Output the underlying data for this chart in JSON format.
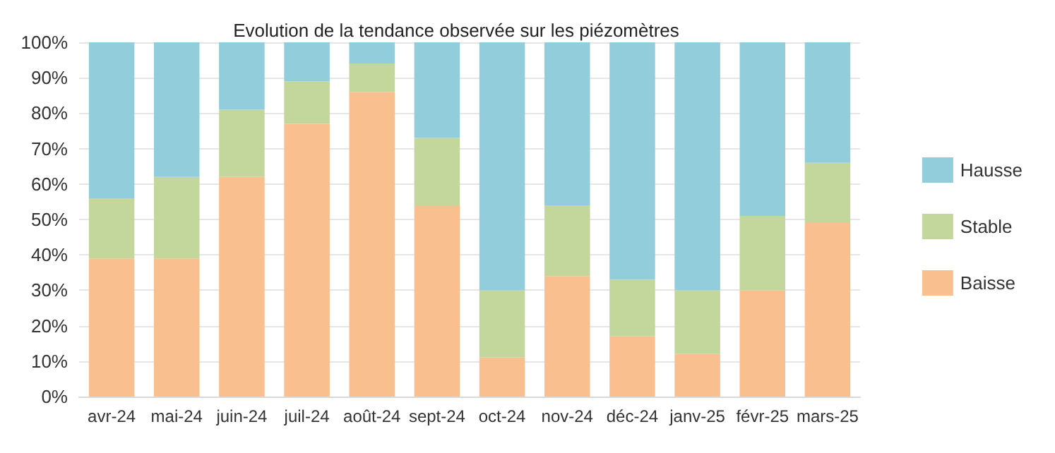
{
  "chart_data": {
    "type": "bar",
    "title": "Evolution de la tendance observée sur les piézomètres",
    "stacked": true,
    "categories": [
      "avr-24",
      "mai-24",
      "juin-24",
      "juil-24",
      "août-24",
      "sept-24",
      "oct-24",
      "nov-24",
      "déc-24",
      "janv-25",
      "févr-25",
      "mars-25"
    ],
    "series": [
      {
        "name": "Baisse",
        "color": "#f9bf8f",
        "values": [
          39,
          39,
          62,
          77,
          86,
          54,
          11,
          34,
          17,
          12,
          30,
          49
        ]
      },
      {
        "name": "Stable",
        "color": "#c3d69b",
        "values": [
          17,
          23,
          19,
          12,
          8,
          19,
          19,
          20,
          16,
          18,
          21,
          17
        ]
      },
      {
        "name": "Hausse",
        "color": "#92cddc",
        "values": [
          44,
          38,
          19,
          11,
          6,
          27,
          70,
          46,
          67,
          70,
          49,
          34
        ]
      }
    ],
    "ylim": [
      0,
      100
    ],
    "yticks": [
      {
        "value": 0,
        "label": "0%"
      },
      {
        "value": 10,
        "label": "10%"
      },
      {
        "value": 20,
        "label": "20%"
      },
      {
        "value": 30,
        "label": "30%"
      },
      {
        "value": 40,
        "label": "40%"
      },
      {
        "value": 50,
        "label": "50%"
      },
      {
        "value": 60,
        "label": "60%"
      },
      {
        "value": 70,
        "label": "70%"
      },
      {
        "value": 80,
        "label": "80%"
      },
      {
        "value": 90,
        "label": "90%"
      },
      {
        "value": 100,
        "label": "100%"
      }
    ],
    "grid": "y",
    "legend": "right"
  }
}
